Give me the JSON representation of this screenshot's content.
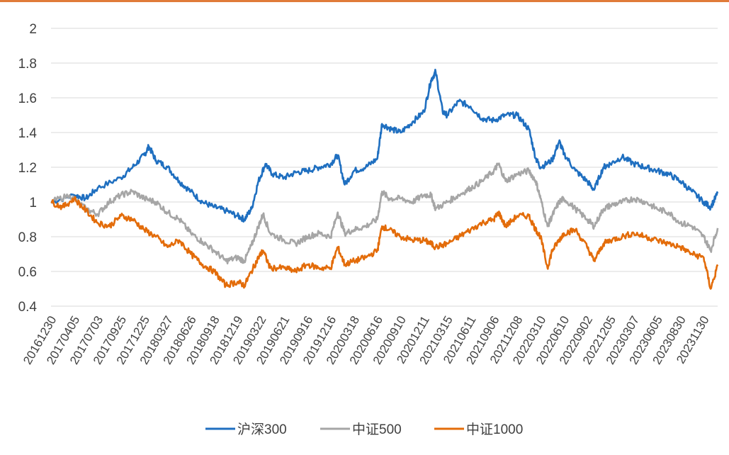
{
  "chart_data": {
    "type": "line",
    "title": "",
    "xlabel": "",
    "ylabel": "",
    "ylim": [
      0.4,
      2.0
    ],
    "yticks": [
      "2",
      "1.8",
      "1.6",
      "1.4",
      "1.2",
      "1",
      "0.8",
      "0.6",
      "0.4"
    ],
    "grid": "horizontal",
    "legend_position": "bottom",
    "x_tick_labels": [
      "20161230",
      "20170405",
      "20170703",
      "20170925",
      "20171225",
      "20180327",
      "20180626",
      "20180918",
      "20181219",
      "20190322",
      "20190621",
      "20190916",
      "20191216",
      "20200318",
      "20200616",
      "20200910",
      "20201211",
      "20210315",
      "20210611",
      "20210906",
      "20211208",
      "20220310",
      "20220610",
      "20220902",
      "20221205",
      "20230307",
      "20230605",
      "20230830",
      "20231130"
    ],
    "series": [
      {
        "name": "沪深300",
        "color": "#1f6fc0",
        "points": [
          [
            0,
            1.0
          ],
          [
            1,
            1.04
          ],
          [
            1.5,
            1.02
          ],
          [
            2,
            1.08
          ],
          [
            3,
            1.14
          ],
          [
            3.5,
            1.2
          ],
          [
            4,
            1.27
          ],
          [
            4.2,
            1.32
          ],
          [
            4.5,
            1.24
          ],
          [
            5,
            1.2
          ],
          [
            5.5,
            1.12
          ],
          [
            6,
            1.06
          ],
          [
            6.5,
            1.0
          ],
          [
            7,
            0.97
          ],
          [
            7.5,
            0.95
          ],
          [
            8,
            0.92
          ],
          [
            8.3,
            0.9
          ],
          [
            8.6,
            0.96
          ],
          [
            8.9,
            1.12
          ],
          [
            9.2,
            1.22
          ],
          [
            9.5,
            1.16
          ],
          [
            10,
            1.14
          ],
          [
            10.5,
            1.17
          ],
          [
            11,
            1.18
          ],
          [
            11.5,
            1.2
          ],
          [
            12,
            1.22
          ],
          [
            12.3,
            1.27
          ],
          [
            12.6,
            1.1
          ],
          [
            13,
            1.18
          ],
          [
            13.5,
            1.2
          ],
          [
            14,
            1.25
          ],
          [
            14.2,
            1.45
          ],
          [
            14.6,
            1.42
          ],
          [
            15,
            1.4
          ],
          [
            15.5,
            1.46
          ],
          [
            16,
            1.52
          ],
          [
            16.3,
            1.7
          ],
          [
            16.5,
            1.75
          ],
          [
            16.8,
            1.52
          ],
          [
            17,
            1.5
          ],
          [
            17.5,
            1.58
          ],
          [
            18,
            1.55
          ],
          [
            18.5,
            1.48
          ],
          [
            19,
            1.47
          ],
          [
            19.5,
            1.5
          ],
          [
            20,
            1.5
          ],
          [
            20.5,
            1.42
          ],
          [
            20.8,
            1.25
          ],
          [
            21,
            1.2
          ],
          [
            21.5,
            1.24
          ],
          [
            21.8,
            1.35
          ],
          [
            22,
            1.28
          ],
          [
            22.5,
            1.18
          ],
          [
            23,
            1.12
          ],
          [
            23.3,
            1.07
          ],
          [
            23.7,
            1.2
          ],
          [
            24,
            1.22
          ],
          [
            24.5,
            1.26
          ],
          [
            25,
            1.22
          ],
          [
            25.5,
            1.2
          ],
          [
            26,
            1.18
          ],
          [
            26.5,
            1.16
          ],
          [
            27,
            1.12
          ],
          [
            27.5,
            1.06
          ],
          [
            28,
            1.0
          ],
          [
            28.3,
            0.97
          ],
          [
            28.6,
            1.05
          ]
        ]
      },
      {
        "name": "中证500",
        "color": "#a6a6a6",
        "points": [
          [
            0,
            1.0
          ],
          [
            0.8,
            1.04
          ],
          [
            1.5,
            0.96
          ],
          [
            2,
            0.93
          ],
          [
            2.5,
            1.0
          ],
          [
            3,
            1.04
          ],
          [
            3.5,
            1.06
          ],
          [
            4,
            1.02
          ],
          [
            4.5,
            1.0
          ],
          [
            5,
            0.94
          ],
          [
            5.5,
            0.9
          ],
          [
            6,
            0.82
          ],
          [
            6.5,
            0.77
          ],
          [
            7,
            0.72
          ],
          [
            7.5,
            0.66
          ],
          [
            8,
            0.68
          ],
          [
            8.3,
            0.66
          ],
          [
            8.6,
            0.75
          ],
          [
            8.9,
            0.86
          ],
          [
            9.1,
            0.93
          ],
          [
            9.4,
            0.82
          ],
          [
            10,
            0.78
          ],
          [
            10.5,
            0.76
          ],
          [
            11,
            0.8
          ],
          [
            11.5,
            0.82
          ],
          [
            12,
            0.8
          ],
          [
            12.3,
            0.94
          ],
          [
            12.6,
            0.82
          ],
          [
            13,
            0.84
          ],
          [
            13.5,
            0.86
          ],
          [
            14,
            0.9
          ],
          [
            14.2,
            1.06
          ],
          [
            14.5,
            1.02
          ],
          [
            15,
            1.02
          ],
          [
            15.5,
            1.0
          ],
          [
            16,
            1.04
          ],
          [
            16.3,
            1.04
          ],
          [
            16.5,
            0.96
          ],
          [
            17,
            1.0
          ],
          [
            17.5,
            1.04
          ],
          [
            18,
            1.08
          ],
          [
            18.5,
            1.12
          ],
          [
            19,
            1.18
          ],
          [
            19.2,
            1.22
          ],
          [
            19.5,
            1.12
          ],
          [
            20,
            1.16
          ],
          [
            20.5,
            1.18
          ],
          [
            20.8,
            1.12
          ],
          [
            21,
            1.02
          ],
          [
            21.3,
            0.86
          ],
          [
            21.5,
            0.92
          ],
          [
            21.8,
            1.0
          ],
          [
            22,
            1.02
          ],
          [
            22.5,
            0.96
          ],
          [
            23,
            0.9
          ],
          [
            23.3,
            0.86
          ],
          [
            23.7,
            0.96
          ],
          [
            24,
            0.98
          ],
          [
            24.5,
            1.0
          ],
          [
            25,
            1.02
          ],
          [
            25.5,
            1.0
          ],
          [
            26,
            0.96
          ],
          [
            26.5,
            0.94
          ],
          [
            27,
            0.88
          ],
          [
            27.5,
            0.86
          ],
          [
            28,
            0.8
          ],
          [
            28.3,
            0.72
          ],
          [
            28.6,
            0.85
          ]
        ]
      },
      {
        "name": "中证1000",
        "color": "#e36c0a",
        "points": [
          [
            0,
            1.0
          ],
          [
            0.5,
            0.97
          ],
          [
            1,
            1.02
          ],
          [
            1.5,
            0.95
          ],
          [
            2,
            0.88
          ],
          [
            2.5,
            0.86
          ],
          [
            3,
            0.92
          ],
          [
            3.5,
            0.9
          ],
          [
            4,
            0.84
          ],
          [
            4.5,
            0.8
          ],
          [
            5,
            0.74
          ],
          [
            5.5,
            0.78
          ],
          [
            6,
            0.7
          ],
          [
            6.5,
            0.64
          ],
          [
            7,
            0.6
          ],
          [
            7.5,
            0.52
          ],
          [
            8,
            0.54
          ],
          [
            8.3,
            0.52
          ],
          [
            8.6,
            0.6
          ],
          [
            8.9,
            0.68
          ],
          [
            9.1,
            0.72
          ],
          [
            9.4,
            0.62
          ],
          [
            10,
            0.62
          ],
          [
            10.5,
            0.6
          ],
          [
            11,
            0.64
          ],
          [
            11.5,
            0.62
          ],
          [
            12,
            0.62
          ],
          [
            12.3,
            0.74
          ],
          [
            12.6,
            0.64
          ],
          [
            13,
            0.66
          ],
          [
            13.5,
            0.68
          ],
          [
            14,
            0.72
          ],
          [
            14.2,
            0.86
          ],
          [
            14.5,
            0.84
          ],
          [
            15,
            0.8
          ],
          [
            15.5,
            0.78
          ],
          [
            16,
            0.78
          ],
          [
            16.3,
            0.76
          ],
          [
            16.5,
            0.74
          ],
          [
            17,
            0.76
          ],
          [
            17.5,
            0.8
          ],
          [
            18,
            0.84
          ],
          [
            18.5,
            0.88
          ],
          [
            19,
            0.9
          ],
          [
            19.2,
            0.94
          ],
          [
            19.5,
            0.86
          ],
          [
            20,
            0.92
          ],
          [
            20.5,
            0.92
          ],
          [
            20.8,
            0.84
          ],
          [
            21,
            0.8
          ],
          [
            21.3,
            0.62
          ],
          [
            21.5,
            0.72
          ],
          [
            21.8,
            0.78
          ],
          [
            22,
            0.82
          ],
          [
            22.5,
            0.84
          ],
          [
            23,
            0.74
          ],
          [
            23.3,
            0.66
          ],
          [
            23.7,
            0.76
          ],
          [
            24,
            0.78
          ],
          [
            24.5,
            0.8
          ],
          [
            25,
            0.82
          ],
          [
            25.5,
            0.8
          ],
          [
            26,
            0.78
          ],
          [
            26.5,
            0.76
          ],
          [
            27,
            0.74
          ],
          [
            27.5,
            0.7
          ],
          [
            28,
            0.68
          ],
          [
            28.3,
            0.5
          ],
          [
            28.6,
            0.63
          ]
        ]
      }
    ]
  }
}
